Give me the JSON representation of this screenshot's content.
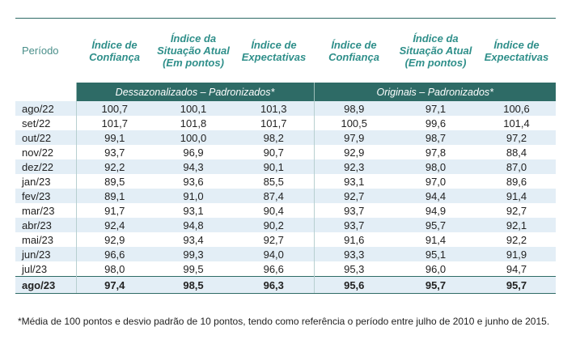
{
  "header": {
    "period": "Período",
    "cols": [
      "Índice de Confiança",
      "Índice da Situação Atual (Em pontos)",
      "Índice de Expectativas",
      "Índice de Confiança",
      "Índice da Situação Atual (Em pontos)",
      "Índice de Expectativas"
    ]
  },
  "groups": [
    "Dessazonalizados – Padronizados*",
    "Originais – Padronizados*"
  ],
  "rows": [
    {
      "period": "ago/22",
      "v": [
        "100,7",
        "100,1",
        "101,3",
        "98,9",
        "97,1",
        "100,6"
      ]
    },
    {
      "period": "set/22",
      "v": [
        "101,7",
        "101,8",
        "101,7",
        "100,5",
        "99,6",
        "101,4"
      ]
    },
    {
      "period": "out/22",
      "v": [
        "99,1",
        "100,0",
        "98,2",
        "97,9",
        "98,7",
        "97,2"
      ]
    },
    {
      "period": "nov/22",
      "v": [
        "93,7",
        "96,9",
        "90,7",
        "92,9",
        "97,8",
        "88,4"
      ]
    },
    {
      "period": "dez/22",
      "v": [
        "92,2",
        "94,3",
        "90,1",
        "92,3",
        "98,0",
        "87,0"
      ]
    },
    {
      "period": "jan/23",
      "v": [
        "89,5",
        "93,6",
        "85,5",
        "93,1",
        "97,0",
        "89,6"
      ]
    },
    {
      "period": "fev/23",
      "v": [
        "89,1",
        "91,0",
        "87,4",
        "92,7",
        "94,4",
        "91,4"
      ]
    },
    {
      "period": "mar/23",
      "v": [
        "91,7",
        "93,1",
        "90,4",
        "93,7",
        "94,9",
        "92,7"
      ]
    },
    {
      "period": "abr/23",
      "v": [
        "92,4",
        "94,8",
        "90,2",
        "93,7",
        "95,7",
        "92,1"
      ]
    },
    {
      "period": "mai/23",
      "v": [
        "92,9",
        "93,4",
        "92,7",
        "91,6",
        "91,4",
        "92,2"
      ]
    },
    {
      "period": "jun/23",
      "v": [
        "96,6",
        "99,3",
        "94,0",
        "93,3",
        "95,1",
        "91,9"
      ]
    },
    {
      "period": "jul/23",
      "v": [
        "98,0",
        "99,5",
        "96,6",
        "95,3",
        "96,0",
        "94,7"
      ]
    },
    {
      "period": "ago/23",
      "v": [
        "97,4",
        "98,5",
        "96,3",
        "95,6",
        "95,7",
        "95,7"
      ]
    }
  ],
  "footnote": "*Média de 100 pontos e desvio padrão de 10 pontos, tendo como referência o período entre julho de 2010 e junho de 2015."
}
